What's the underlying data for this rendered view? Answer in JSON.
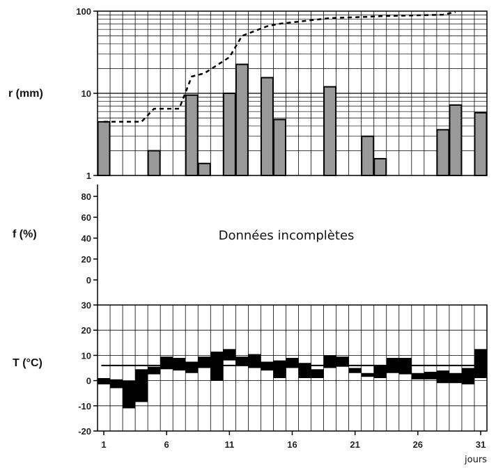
{
  "chart_data": [
    {
      "type": "bar",
      "panel": "precipitation",
      "ylabel": "r (mm)",
      "yscale": "log",
      "ylim": [
        1,
        100
      ],
      "y_ticks": [
        "1",
        "10",
        "100"
      ],
      "grid": true,
      "bar_color": "#999999",
      "days": [
        1,
        5,
        8,
        9,
        11,
        12,
        14,
        15,
        19,
        22,
        23,
        28,
        29,
        31
      ],
      "values": [
        4.5,
        2.0,
        9.5,
        1.4,
        10.0,
        22.5,
        15.5,
        4.8,
        12.0,
        3.0,
        1.6,
        3.6,
        7.2,
        5.8
      ],
      "cumulative_series": {
        "style": "dashed",
        "days": [
          1,
          4,
          5,
          7,
          8,
          9,
          11,
          12,
          14,
          15,
          19,
          22,
          23,
          28,
          29
        ],
        "values": [
          4.5,
          4.5,
          6.5,
          6.5,
          16.0,
          17.5,
          27.5,
          50.0,
          65.5,
          70.3,
          82.3,
          85.3,
          86.9,
          90.5,
          97.7
        ]
      }
    },
    {
      "type": "line",
      "panel": "humidity",
      "ylabel": "f (%)",
      "ylim": [
        0,
        80
      ],
      "y_ticks": [
        "0",
        "20",
        "40",
        "60",
        "80"
      ],
      "grid": false,
      "annotation": "Données incomplètes"
    },
    {
      "type": "bar",
      "panel": "temperature",
      "ylabel": "T (°C)",
      "ylim": [
        -20,
        30
      ],
      "y_ticks": [
        "-20",
        "-10",
        "0",
        "10",
        "20",
        "30"
      ],
      "x_ticks": [
        "1",
        "6",
        "11",
        "16",
        "21",
        "26",
        "31"
      ],
      "xlabel": "jours",
      "grid": true,
      "bar_color": "#000000",
      "days": [
        1,
        2,
        3,
        4,
        5,
        6,
        7,
        8,
        9,
        10,
        11,
        12,
        13,
        14,
        15,
        16,
        17,
        18,
        19,
        20,
        21,
        22,
        23,
        24,
        25,
        26,
        27,
        28,
        29,
        30,
        31
      ],
      "tmin": [
        -1.5,
        -3.0,
        -11.0,
        -8.5,
        2.5,
        4.5,
        4.0,
        3.0,
        5.0,
        0.0,
        8.0,
        6.0,
        5.0,
        4.0,
        1.0,
        5.0,
        1.0,
        1.0,
        5.0,
        5.5,
        3.0,
        1.5,
        1.0,
        3.0,
        2.5,
        0.5,
        0.5,
        -1.0,
        -1.0,
        -1.5,
        1.0
      ],
      "tmax": [
        1.0,
        0.5,
        0.0,
        4.5,
        5.5,
        9.5,
        9.0,
        7.5,
        9.5,
        11.5,
        12.5,
        9.5,
        10.5,
        7.5,
        8.0,
        9.0,
        7.0,
        4.5,
        10.0,
        9.5,
        5.0,
        3.0,
        6.0,
        9.0,
        9.0,
        3.0,
        3.5,
        4.0,
        3.0,
        5.0,
        12.5
      ],
      "mean_line": 6.0
    }
  ]
}
